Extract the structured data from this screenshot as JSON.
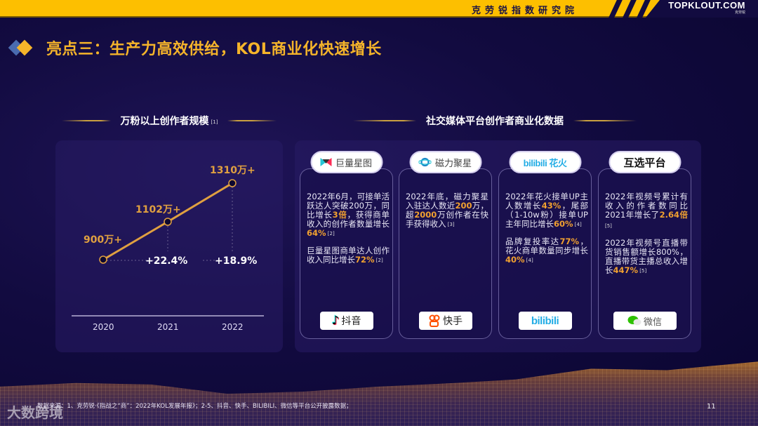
{
  "header": {
    "institute": "克劳锐指数研究院",
    "brand_name": "TOPKLOUT.COM",
    "brand_sub": "克劳锐"
  },
  "page_title": "亮点三：生产力高效供给，KOL商业化快速增长",
  "left_section": {
    "title": "万粉以上创作者规模",
    "ref": "[1]"
  },
  "right_section": {
    "title": "社交媒体平台创作者商业化数据"
  },
  "chart_data": {
    "type": "line",
    "title": "万粉以上创作者规模",
    "categories": [
      "2020",
      "2021",
      "2022"
    ],
    "values": [
      900,
      1102,
      1310
    ],
    "unit": "万+",
    "point_labels": [
      "900万+",
      "1102万+",
      "1310万+"
    ],
    "growth_labels": [
      "+22.4%",
      "+18.9%"
    ],
    "xlabel": "",
    "ylabel": "",
    "grid": false,
    "color": "#e0a040"
  },
  "cards": [
    {
      "platform_label": "巨量星图",
      "footer_label": "抖音",
      "paragraphs": [
        {
          "parts": [
            {
              "t": "2022年6月，可接单活跃达人突破200万，同比增长"
            },
            {
              "t": "3倍",
              "hl": true
            },
            {
              "t": "，获得商单收入的创作者数量增长"
            },
            {
              "t": "64%",
              "hl": true
            },
            {
              "t": " [2]",
              "ref": true
            }
          ]
        },
        {
          "parts": [
            {
              "t": "巨量星图商单达人创作收入同比增长"
            },
            {
              "t": "72%",
              "hl": true
            },
            {
              "t": " [2]",
              "ref": true
            }
          ]
        }
      ]
    },
    {
      "platform_label": "磁力聚星",
      "footer_label": "快手",
      "paragraphs": [
        {
          "parts": [
            {
              "t": "2022年底，磁力聚星入驻达人数近"
            },
            {
              "t": "200",
              "hl": true
            },
            {
              "t": "万，超"
            },
            {
              "t": "2000",
              "hl": true
            },
            {
              "t": "万创作者在快手获得收入"
            },
            {
              "t": " [3]",
              "ref": true
            }
          ]
        }
      ]
    },
    {
      "platform_label": "bilibili 花火",
      "footer_label": "bilibili",
      "paragraphs": [
        {
          "parts": [
            {
              "t": "2022年花火接单UP主人数增长"
            },
            {
              "t": "43%",
              "hl": true
            },
            {
              "t": "，尾部（1-10w粉）接单UP主年同比增长"
            },
            {
              "t": "60%",
              "hl": true
            },
            {
              "t": " [4]",
              "ref": true
            }
          ]
        },
        {
          "parts": [
            {
              "t": "品牌复投率达"
            },
            {
              "t": "77%",
              "hl": true
            },
            {
              "t": "，花火商单数量同步增长"
            },
            {
              "t": "40%",
              "hl": true
            },
            {
              "t": " [4]",
              "ref": true
            }
          ]
        }
      ]
    },
    {
      "platform_label": "互选平台",
      "footer_label": "微信",
      "paragraphs": [
        {
          "parts": [
            {
              "t": "2022年视频号累计有收入的作者数同比2021年增长了"
            },
            {
              "t": "2.64倍",
              "hl": true
            },
            {
              "t": " [5]",
              "ref": true
            }
          ]
        },
        {
          "parts": [
            {
              "t": "2022年视频号直播带货销售额增长800%，直播带货主播总收入增长"
            },
            {
              "t": "447%",
              "hl": true
            },
            {
              "t": " [5]",
              "ref": true
            }
          ]
        }
      ]
    }
  ],
  "footer": {
    "source": "数据来源：1、克劳锐·《指战之“商”：2022年KOL发展年报》；2-5、抖音、快手、BILIBILI、微信等平台公开披露数据；",
    "watermark": "大数跨境",
    "page_number": "11"
  },
  "colors": {
    "accent_gold": "#f5b42a",
    "top_bar": "#fdbf00",
    "background": "#120b40",
    "highlight": "#f0a030"
  }
}
